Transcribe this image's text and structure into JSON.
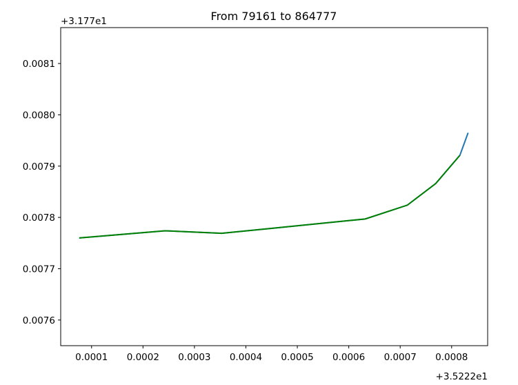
{
  "chart_data": {
    "type": "line",
    "title": "From 79161 to 864777",
    "x_offset_label": "+3.5222e1",
    "y_offset_label": "+3.177e1",
    "x": [
      7.6e-05,
      0.000243,
      0.000353,
      0.000632,
      0.000714,
      0.000769,
      0.000816,
      0.000832
    ],
    "series": [
      {
        "color": "#1f77b4",
        "values": [
          0.00776,
          0.007774,
          0.007769,
          0.007797,
          0.007824,
          0.007866,
          0.007921,
          0.007965
        ]
      },
      {
        "color": "#008000",
        "values": [
          0.00776,
          0.007774,
          0.007769,
          0.007797,
          0.007824,
          0.007866,
          0.007921,
          null
        ]
      }
    ],
    "xlim": [
      4e-05,
      0.00087
    ],
    "ylim": [
      0.00755,
      0.00817
    ],
    "xticks": [
      0.0001,
      0.0002,
      0.0003,
      0.0004,
      0.0005,
      0.0006,
      0.0007,
      0.0008
    ],
    "yticks": [
      0.0076,
      0.0077,
      0.0078,
      0.0079,
      {
        "value": 0.008,
        "label": "0.0080"
      },
      0.0081
    ],
    "grid": false
  }
}
